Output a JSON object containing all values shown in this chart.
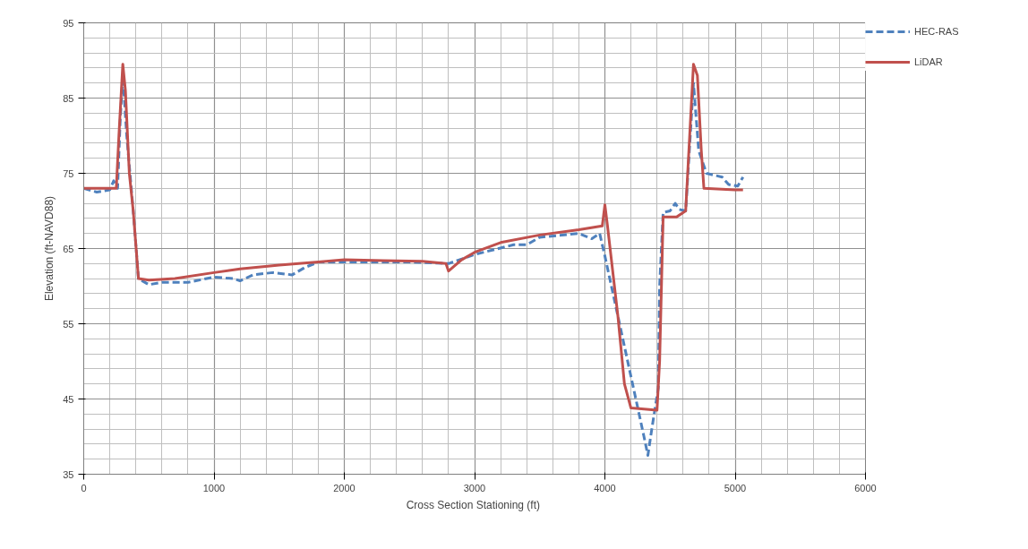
{
  "chart_data": {
    "type": "line",
    "xlabel": "Cross Section Stationing  (ft)",
    "ylabel": "Elevation (ft-NAVD88)",
    "xlim": [
      0,
      6000
    ],
    "xticks": [
      0,
      1000,
      2000,
      3000,
      4000,
      5000,
      6000
    ],
    "ylim": [
      35,
      95
    ],
    "yticks": [
      35,
      45,
      55,
      65,
      75,
      85,
      95
    ],
    "grid": true,
    "legend": "right",
    "series": [
      {
        "name": "HEC-RAS",
        "color": "#4f81bd",
        "line_style": "dashed",
        "x": [
          0,
          100,
          200,
          230,
          260,
          280,
          300,
          330,
          380,
          420,
          500,
          600,
          800,
          1000,
          1150,
          1200,
          1300,
          1450,
          1600,
          1700,
          1800,
          2500,
          2800,
          3000,
          3300,
          3400,
          3500,
          3800,
          3900,
          3960,
          4000,
          4100,
          4200,
          4250,
          4300,
          4330,
          4360,
          4410,
          4420,
          4447,
          4500,
          4540,
          4570,
          4620,
          4680,
          4720,
          4780,
          4900,
          4950,
          5020,
          5060
        ],
        "values": [
          73,
          72.5,
          72.8,
          74,
          73,
          82,
          88,
          80,
          70,
          61,
          60.2,
          60.5,
          60.5,
          61.2,
          61,
          60.7,
          61.5,
          61.8,
          61.5,
          62.5,
          63.2,
          63.2,
          63,
          64.2,
          65.5,
          65.5,
          66.5,
          67,
          66.3,
          67,
          64,
          56,
          48,
          44,
          40,
          37.5,
          41,
          46.5,
          60,
          69.8,
          70,
          71,
          70.2,
          70,
          87,
          78,
          75,
          74.5,
          73.5,
          73.3,
          74.5
        ]
      },
      {
        "name": "LiDAR",
        "color": "#c0504d",
        "line_style": "solid",
        "x": [
          0,
          250,
          270,
          300,
          320,
          350,
          380,
          420,
          500,
          700,
          1000,
          1200,
          1500,
          1800,
          2000,
          2300,
          2600,
          2780,
          2800,
          2900,
          3000,
          3200,
          3500,
          3800,
          3980,
          4000,
          4020,
          4100,
          4150,
          4200,
          4400,
          4420,
          4447,
          4550,
          4620,
          4680,
          4710,
          4740,
          4760,
          5000,
          5060
        ],
        "values": [
          73,
          73,
          80,
          89.5,
          86,
          75,
          70,
          61,
          60.8,
          61,
          61.8,
          62.3,
          62.8,
          63.2,
          63.5,
          63.4,
          63.3,
          63,
          62,
          63.5,
          64.5,
          65.8,
          66.8,
          67.5,
          68,
          70.8,
          68,
          56,
          47,
          43.8,
          43.5,
          50,
          69.2,
          69.2,
          70,
          89.5,
          88,
          78,
          73,
          72.8,
          72.8
        ]
      }
    ]
  }
}
